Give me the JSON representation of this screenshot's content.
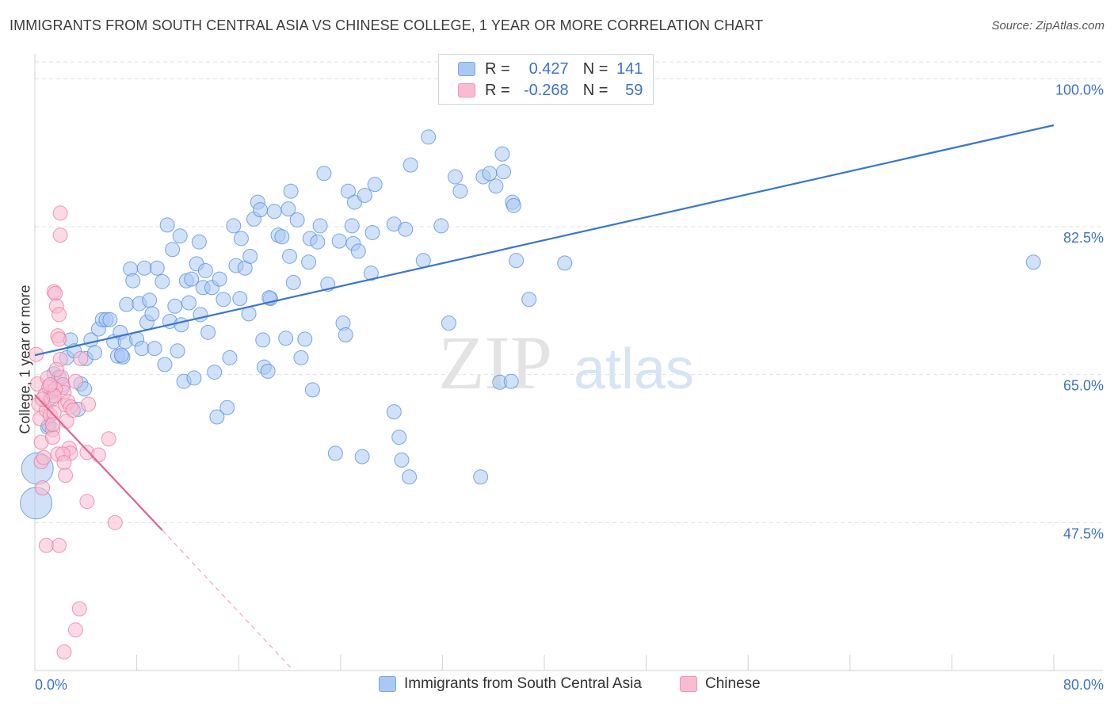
{
  "title": "IMMIGRANTS FROM SOUTH CENTRAL ASIA VS CHINESE COLLEGE, 1 YEAR OR MORE CORRELATION CHART",
  "source": "Source: ZipAtlas.com",
  "watermark": {
    "zip": "ZIP",
    "atlas": "atlas"
  },
  "legend": {
    "r_label": "R =",
    "n_label": "N =",
    "series": [
      {
        "r": "0.427",
        "n": "141",
        "color": "#a9c8f2",
        "stroke": "#7ea9e0"
      },
      {
        "r": "-0.268",
        "n": "59",
        "color": "#f8bcd0",
        "stroke": "#f095b4"
      }
    ]
  },
  "bottom_legend": [
    "Immigrants from South Central Asia",
    "Chinese"
  ],
  "chart_data": {
    "type": "scatter",
    "title": "IMMIGRANTS FROM SOUTH CENTRAL ASIA VS CHINESE COLLEGE, 1 YEAR OR MORE CORRELATION CHART",
    "xlabel": "",
    "ylabel": "College, 1 year or more",
    "xlim": [
      0,
      80
    ],
    "ylim": [
      30,
      102
    ],
    "x_ticks_labels": [
      "0.0%",
      "80.0%"
    ],
    "y_ticks": [
      47.5,
      65.0,
      82.5,
      100.0
    ],
    "y_tick_labels": [
      "47.5%",
      "65.0%",
      "82.5%",
      "100.0%"
    ],
    "grid": true,
    "legend_position": "top-center",
    "series": [
      {
        "name": "Immigrants from South Central Asia",
        "color": "#4a86d8",
        "fill": "#a9c8f2",
        "trend": {
          "x": [
            0,
            80
          ],
          "y": [
            67.3,
            94.5
          ]
        },
        "points": [
          [
            0.2,
            53.9
          ],
          [
            0.1,
            49.8
          ],
          [
            1.0,
            58.8
          ],
          [
            1.1,
            59.0
          ],
          [
            1.2,
            62.2
          ],
          [
            1.3,
            63.0
          ],
          [
            1.5,
            65.1
          ],
          [
            1.9,
            64.7
          ],
          [
            2.2,
            63.5
          ],
          [
            2.5,
            67.0
          ],
          [
            2.8,
            69.1
          ],
          [
            3.1,
            67.8
          ],
          [
            3.4,
            60.9
          ],
          [
            3.6,
            63.9
          ],
          [
            4.0,
            66.9
          ],
          [
            4.4,
            69.1
          ],
          [
            4.7,
            67.6
          ],
          [
            5.0,
            70.4
          ],
          [
            5.3,
            71.5
          ],
          [
            5.6,
            71.5
          ],
          [
            5.9,
            71.5
          ],
          [
            6.2,
            68.9
          ],
          [
            6.5,
            67.2
          ],
          [
            6.7,
            70.0
          ],
          [
            6.9,
            67.1
          ],
          [
            7.1,
            68.9
          ],
          [
            7.2,
            73.3
          ],
          [
            7.5,
            77.5
          ],
          [
            7.7,
            76.1
          ],
          [
            8.0,
            69.2
          ],
          [
            8.2,
            73.4
          ],
          [
            8.4,
            68.1
          ],
          [
            8.6,
            77.6
          ],
          [
            8.8,
            71.2
          ],
          [
            9.0,
            73.8
          ],
          [
            9.4,
            68.1
          ],
          [
            9.6,
            77.6
          ],
          [
            10.0,
            76.0
          ],
          [
            10.2,
            66.2
          ],
          [
            10.4,
            82.7
          ],
          [
            10.6,
            71.3
          ],
          [
            10.8,
            79.8
          ],
          [
            11.0,
            73.1
          ],
          [
            11.2,
            67.8
          ],
          [
            11.5,
            70.9
          ],
          [
            11.7,
            64.2
          ],
          [
            11.9,
            76.1
          ],
          [
            12.1,
            73.5
          ],
          [
            12.3,
            76.3
          ],
          [
            12.5,
            64.6
          ],
          [
            12.7,
            78.1
          ],
          [
            12.9,
            80.7
          ],
          [
            13.2,
            75.3
          ],
          [
            13.4,
            77.3
          ],
          [
            13.6,
            70.0
          ],
          [
            13.9,
            75.3
          ],
          [
            14.1,
            65.3
          ],
          [
            14.3,
            60.0
          ],
          [
            14.5,
            76.3
          ],
          [
            14.8,
            73.9
          ],
          [
            15.1,
            61.1
          ],
          [
            15.3,
            67.0
          ],
          [
            15.6,
            82.6
          ],
          [
            15.8,
            77.9
          ],
          [
            16.1,
            74.0
          ],
          [
            16.5,
            77.6
          ],
          [
            16.8,
            72.2
          ],
          [
            16.9,
            79.0
          ],
          [
            17.2,
            83.4
          ],
          [
            17.5,
            85.4
          ],
          [
            17.7,
            84.5
          ],
          [
            17.9,
            69.1
          ],
          [
            18.0,
            65.9
          ],
          [
            18.3,
            65.4
          ],
          [
            18.5,
            74.0
          ],
          [
            18.8,
            84.3
          ],
          [
            19.1,
            81.5
          ],
          [
            19.4,
            81.3
          ],
          [
            19.7,
            69.3
          ],
          [
            19.9,
            84.6
          ],
          [
            20.0,
            79.0
          ],
          [
            20.1,
            86.7
          ],
          [
            20.3,
            75.9
          ],
          [
            20.6,
            83.3
          ],
          [
            20.9,
            67.0
          ],
          [
            21.2,
            69.2
          ],
          [
            21.5,
            78.3
          ],
          [
            21.6,
            81.1
          ],
          [
            21.8,
            63.2
          ],
          [
            22.2,
            80.7
          ],
          [
            22.4,
            82.6
          ],
          [
            22.7,
            88.8
          ],
          [
            23.0,
            75.7
          ],
          [
            23.6,
            55.7
          ],
          [
            23.9,
            80.8
          ],
          [
            24.2,
            71.1
          ],
          [
            24.4,
            69.7
          ],
          [
            24.6,
            86.7
          ],
          [
            25.0,
            80.5
          ],
          [
            25.1,
            85.4
          ],
          [
            25.4,
            79.6
          ],
          [
            25.7,
            55.3
          ],
          [
            25.9,
            86.2
          ],
          [
            26.4,
            77.0
          ],
          [
            26.5,
            81.8
          ],
          [
            26.7,
            87.5
          ],
          [
            28.2,
            82.8
          ],
          [
            28.2,
            60.6
          ],
          [
            28.6,
            57.6
          ],
          [
            28.8,
            54.9
          ],
          [
            29.1,
            82.2
          ],
          [
            29.4,
            52.9
          ],
          [
            29.5,
            89.8
          ],
          [
            30.5,
            78.5
          ],
          [
            30.9,
            93.1
          ],
          [
            31.9,
            82.6
          ],
          [
            32.5,
            71.1
          ],
          [
            33.0,
            88.4
          ],
          [
            33.4,
            86.7
          ],
          [
            35.0,
            52.9
          ],
          [
            35.2,
            88.4
          ],
          [
            35.7,
            88.8
          ],
          [
            36.2,
            87.3
          ],
          [
            36.5,
            64.1
          ],
          [
            36.7,
            91.1
          ],
          [
            36.8,
            89.0
          ],
          [
            37.4,
            64.2
          ],
          [
            37.5,
            85.4
          ],
          [
            37.6,
            85.0
          ],
          [
            37.8,
            78.5
          ],
          [
            38.8,
            73.9
          ],
          [
            41.6,
            78.2
          ],
          [
            78.4,
            78.3
          ],
          [
            6.8,
            67.3
          ],
          [
            3.9,
            63.3
          ],
          [
            9.2,
            72.2
          ],
          [
            13.0,
            72.1
          ],
          [
            11.4,
            81.4
          ],
          [
            24.9,
            82.6
          ],
          [
            18.4,
            74.1
          ],
          [
            16.2,
            81.1
          ]
        ]
      },
      {
        "name": "Chinese",
        "color": "#e8709a",
        "fill": "#f8bcd0",
        "trend": {
          "x": [
            0,
            10.0
          ],
          "y": [
            62.6,
            46.6
          ]
        },
        "trend_ext": {
          "x": [
            10.0,
            20.3
          ],
          "y": [
            46.6,
            30.0
          ]
        },
        "points": [
          [
            0.1,
            67.4
          ],
          [
            0.2,
            63.9
          ],
          [
            0.3,
            61.5
          ],
          [
            0.4,
            59.8
          ],
          [
            0.5,
            57.0
          ],
          [
            0.5,
            54.7
          ],
          [
            0.6,
            51.6
          ],
          [
            0.7,
            55.2
          ],
          [
            0.8,
            62.6
          ],
          [
            0.9,
            60.8
          ],
          [
            1.0,
            64.6
          ],
          [
            1.1,
            63.5
          ],
          [
            1.2,
            60.2
          ],
          [
            1.3,
            62.0
          ],
          [
            1.4,
            58.5
          ],
          [
            1.4,
            57.6
          ],
          [
            1.5,
            74.8
          ],
          [
            1.6,
            74.6
          ],
          [
            1.7,
            73.1
          ],
          [
            1.8,
            69.6
          ],
          [
            1.9,
            69.2
          ],
          [
            2.0,
            66.8
          ],
          [
            2.1,
            64.7
          ],
          [
            2.2,
            63.8
          ],
          [
            2.3,
            62.9
          ],
          [
            2.4,
            61.4
          ],
          [
            2.5,
            59.5
          ],
          [
            2.6,
            61.8
          ],
          [
            2.7,
            56.3
          ],
          [
            2.8,
            55.7
          ],
          [
            1.9,
            72.1
          ],
          [
            1.7,
            65.6
          ],
          [
            1.6,
            63.3
          ],
          [
            1.5,
            62.5
          ],
          [
            1.5,
            60.5
          ],
          [
            1.4,
            59.1
          ],
          [
            1.8,
            55.6
          ],
          [
            2.2,
            55.6
          ],
          [
            2.3,
            54.6
          ],
          [
            2.4,
            53.1
          ],
          [
            2.8,
            61.2
          ],
          [
            3.0,
            60.8
          ],
          [
            3.2,
            64.2
          ],
          [
            3.6,
            66.9
          ],
          [
            4.2,
            61.5
          ],
          [
            4.1,
            55.8
          ],
          [
            4.1,
            50.0
          ],
          [
            5.0,
            55.5
          ],
          [
            5.8,
            57.4
          ],
          [
            6.3,
            47.5
          ],
          [
            0.9,
            44.8
          ],
          [
            1.9,
            44.8
          ],
          [
            3.5,
            37.3
          ],
          [
            3.2,
            34.8
          ],
          [
            2.3,
            32.2
          ],
          [
            2.0,
            81.5
          ],
          [
            2.0,
            84.1
          ],
          [
            1.2,
            63.8
          ],
          [
            0.6,
            62.1
          ]
        ]
      }
    ]
  }
}
